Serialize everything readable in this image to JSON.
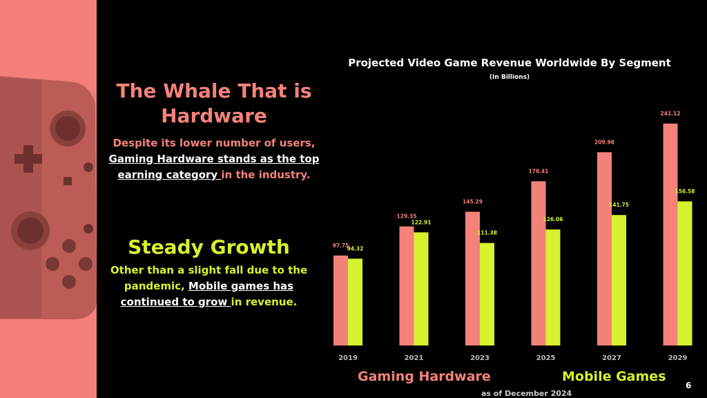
{
  "slide": {
    "heading_hardware": "The Whale That is Hardware",
    "para_hardware": {
      "pre": "Despite its lower number of users, ",
      "underlined": "Gaming Hardware stands as the top earning category ",
      "post": "in the industry."
    },
    "heading_growth": "Steady Growth",
    "para_growth": {
      "pre": "Other than a slight fall due to the pandemic, ",
      "underlined": "Mobile games has continued to grow ",
      "post": "in revenue."
    },
    "footnote": "as of December 2024",
    "page_number": "6"
  },
  "colors": {
    "hardware": "#f5827a",
    "mobile": "#d6f22e",
    "stripe": "#f28078",
    "background": "#000000"
  },
  "chart_data": {
    "type": "bar",
    "title": "Projected Video Game Revenue Worldwide By Segment",
    "subtitle": "(In Billions)",
    "categories": [
      "2019",
      "2021",
      "2023",
      "2025",
      "2027",
      "2029"
    ],
    "series": [
      {
        "name": "Gaming Hardware",
        "values": [
          97.75,
          129.35,
          145.29,
          178.41,
          209.98,
          241.12
        ]
      },
      {
        "name": "Mobile Games",
        "values": [
          94.32,
          122.91,
          111.38,
          126.06,
          141.75,
          156.58
        ]
      }
    ],
    "value_labels": {
      "hardware": [
        "97.75",
        "129.35",
        "145.29",
        "178.41",
        "209.98",
        "241.12"
      ],
      "mobile": [
        "94.32",
        "122.91",
        "111.38",
        "126.06",
        "141.75",
        "156.58"
      ]
    },
    "ylim": [
      0,
      250
    ],
    "grid": false,
    "legend": "bottom"
  }
}
